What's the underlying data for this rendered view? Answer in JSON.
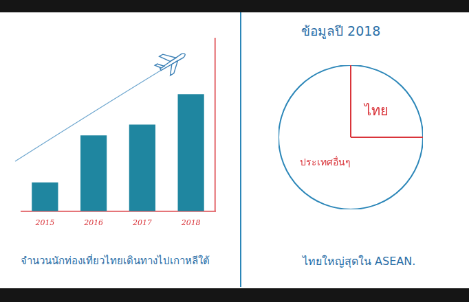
{
  "chart_data": [
    {
      "type": "bar",
      "title": "จำนวนนักท่องเที่ยวไทยเดินทางไปเกาหลีใต้",
      "categories": [
        "2015",
        "2016",
        "2017",
        "2018"
      ],
      "values": [
        40,
        105,
        120,
        162
      ],
      "color": "#1f86a0",
      "ylim": [
        0,
        240
      ],
      "yticks": [],
      "tick_labels": "x",
      "grid": false
    },
    {
      "type": "pie",
      "title": "ข้อมูลปี 2018",
      "categories": [
        "ไทย",
        "ประเทศอื่นๆ"
      ],
      "values": [
        25,
        75
      ],
      "color": "#2b86b8",
      "annotations": [
        "ไทยใหญ่สุดใน ASEAN."
      ]
    }
  ]
}
